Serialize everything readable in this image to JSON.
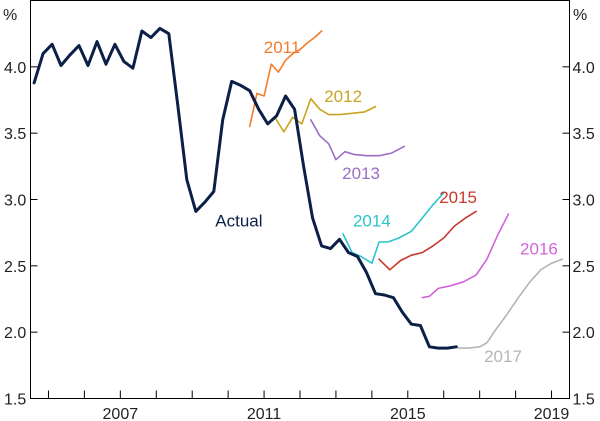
{
  "chart_data": {
    "type": "line",
    "y_unit_left": "%",
    "y_unit_right": "%",
    "ylim": [
      1.5,
      4.5
    ],
    "yticks": [
      1.5,
      2.0,
      2.5,
      3.0,
      3.5,
      4.0
    ],
    "ytick_labels": [
      "1.5",
      "2.0",
      "2.5",
      "3.0",
      "3.5",
      "4.0"
    ],
    "xlim": [
      2004.5,
      2019.5
    ],
    "xtick_labels": [
      "2007",
      "2011",
      "2015",
      "2019"
    ],
    "xtick_values": [
      2007,
      2011,
      2015,
      2019
    ],
    "minor_xticks": [
      2005,
      2006,
      2007,
      2008,
      2009,
      2010,
      2011,
      2012,
      2013,
      2014,
      2015,
      2016,
      2017,
      2018,
      2019
    ],
    "grid": false,
    "series": [
      {
        "name": "Actual",
        "color": "#0b1f47",
        "width": 3,
        "x": [
          2004.6,
          2004.85,
          2005.1,
          2005.35,
          2005.6,
          2005.85,
          2006.1,
          2006.35,
          2006.6,
          2006.85,
          2007.1,
          2007.35,
          2007.6,
          2007.85,
          2008.1,
          2008.35,
          2008.6,
          2008.85,
          2009.1,
          2009.35,
          2009.6,
          2009.85,
          2010.1,
          2010.35,
          2010.6,
          2010.85,
          2011.1,
          2011.35,
          2011.6,
          2011.85,
          2012.1,
          2012.35,
          2012.6,
          2012.85,
          2013.1,
          2013.35,
          2013.6,
          2013.85,
          2014.1,
          2014.35,
          2014.6,
          2014.85,
          2015.1,
          2015.35,
          2015.6,
          2015.85,
          2016.1,
          2016.35
        ],
        "y": [
          3.88,
          4.1,
          4.17,
          4.01,
          4.09,
          4.16,
          4.01,
          4.19,
          4.02,
          4.17,
          4.04,
          3.99,
          4.27,
          4.22,
          4.29,
          4.25,
          3.71,
          3.15,
          2.91,
          2.98,
          3.06,
          3.6,
          3.89,
          3.86,
          3.82,
          3.68,
          3.57,
          3.63,
          3.78,
          3.68,
          3.25,
          2.86,
          2.65,
          2.63,
          2.7,
          2.6,
          2.57,
          2.45,
          2.29,
          2.28,
          2.26,
          2.15,
          2.06,
          2.05,
          1.89,
          1.88,
          1.88,
          1.89
        ]
      },
      {
        "name": "2011",
        "color": "#f47c2c",
        "width": 1.6,
        "x": [
          2010.6,
          2010.8,
          2011.0,
          2011.2,
          2011.4,
          2011.6,
          2011.8,
          2012.0,
          2012.2,
          2012.4,
          2012.6
        ],
        "y": [
          3.55,
          3.8,
          3.78,
          4.02,
          3.96,
          4.05,
          4.1,
          4.13,
          4.18,
          4.22,
          4.27
        ]
      },
      {
        "name": "2012",
        "color": "#c8a520",
        "width": 1.6,
        "x": [
          2011.3,
          2011.55,
          2011.8,
          2012.05,
          2012.3,
          2012.55,
          2012.8,
          2013.1,
          2013.45,
          2013.8,
          2014.1
        ],
        "y": [
          3.62,
          3.51,
          3.62,
          3.57,
          3.76,
          3.68,
          3.64,
          3.64,
          3.65,
          3.66,
          3.7
        ]
      },
      {
        "name": "2013",
        "color": "#9c6dc8",
        "width": 1.6,
        "x": [
          2012.3,
          2012.55,
          2012.8,
          2013.0,
          2013.25,
          2013.5,
          2013.85,
          2014.2,
          2014.55,
          2014.9
        ],
        "y": [
          3.6,
          3.48,
          3.42,
          3.3,
          3.36,
          3.34,
          3.33,
          3.33,
          3.35,
          3.4
        ]
      },
      {
        "name": "2014",
        "color": "#2bc4cc",
        "width": 1.6,
        "x": [
          2013.2,
          2013.45,
          2013.7,
          2014.0,
          2014.2,
          2014.45,
          2014.75,
          2015.1,
          2015.4,
          2015.7,
          2016.0
        ],
        "y": [
          2.74,
          2.6,
          2.57,
          2.52,
          2.68,
          2.68,
          2.71,
          2.76,
          2.86,
          2.96,
          3.05
        ]
      },
      {
        "name": "2015",
        "color": "#c8372c",
        "width": 1.6,
        "x": [
          2014.2,
          2014.5,
          2014.8,
          2015.1,
          2015.4,
          2015.7,
          2016.0,
          2016.3,
          2016.6,
          2016.9
        ],
        "y": [
          2.55,
          2.47,
          2.54,
          2.58,
          2.6,
          2.65,
          2.71,
          2.8,
          2.86,
          2.91
        ]
      },
      {
        "name": "2016",
        "color": "#d264d8",
        "width": 1.6,
        "x": [
          2015.4,
          2015.6,
          2015.85,
          2016.2,
          2016.55,
          2016.9,
          2017.2,
          2017.5,
          2017.8
        ],
        "y": [
          2.26,
          2.27,
          2.33,
          2.35,
          2.38,
          2.43,
          2.55,
          2.73,
          2.89
        ]
      },
      {
        "name": "2017",
        "color": "#b5b5b5",
        "width": 1.6,
        "x": [
          2016.4,
          2016.7,
          2017.0,
          2017.2,
          2017.45,
          2017.75,
          2018.05,
          2018.4,
          2018.7,
          2019.0,
          2019.3
        ],
        "y": [
          1.88,
          1.88,
          1.89,
          1.92,
          2.02,
          2.13,
          2.25,
          2.38,
          2.47,
          2.52,
          2.55
        ]
      }
    ],
    "labels": [
      {
        "text": "2011",
        "x": 2011.5,
        "y": 4.15,
        "anchor": "middle",
        "color": "#f47c2c"
      },
      {
        "text": "2012",
        "x": 2013.2,
        "y": 3.78,
        "anchor": "middle",
        "color": "#c8a520"
      },
      {
        "text": "2013",
        "x": 2013.7,
        "y": 3.2,
        "anchor": "middle",
        "color": "#9c6dc8"
      },
      {
        "text": "2014",
        "x": 2014.0,
        "y": 2.84,
        "anchor": "middle",
        "color": "#2bc4cc"
      },
      {
        "text": "2015",
        "x": 2016.4,
        "y": 3.02,
        "anchor": "middle",
        "color": "#c8372c"
      },
      {
        "text": "2016",
        "x": 2018.65,
        "y": 2.63,
        "anchor": "middle",
        "color": "#d264d8"
      },
      {
        "text": "2017",
        "x": 2017.65,
        "y": 1.82,
        "anchor": "middle",
        "color": "#b5b5b5"
      },
      {
        "text": "Actual",
        "x": 2010.3,
        "y": 2.84,
        "anchor": "middle",
        "color": "#0b1f47"
      }
    ]
  }
}
